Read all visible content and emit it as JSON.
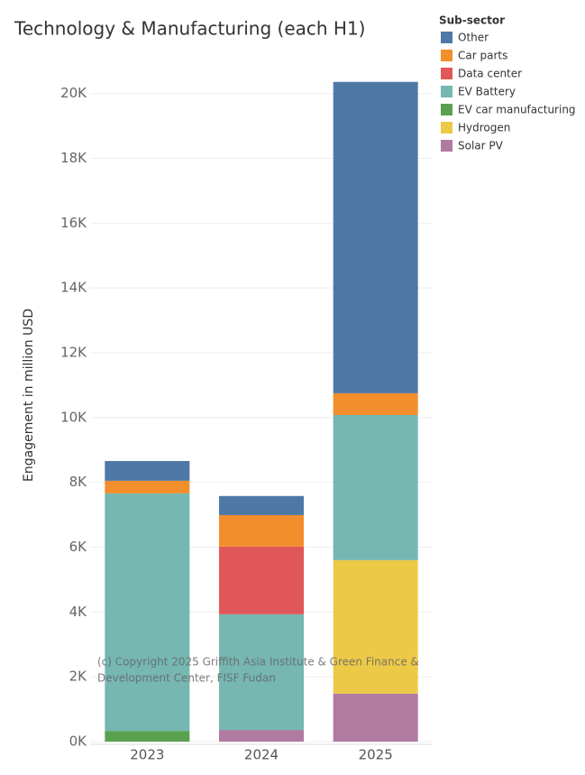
{
  "chart_data": {
    "type": "stacked_bar",
    "title": "Technology & Manufacturing (each H1)",
    "y_label": "Engagement in million USD",
    "legend_title": "Sub-sector",
    "categories": [
      "2023",
      "2024",
      "2025"
    ],
    "series": [
      {
        "name": "Other",
        "color": "#4e79a7",
        "values": [
          610,
          590,
          9610
        ]
      },
      {
        "name": "Car parts",
        "color": "#f28e2b",
        "values": [
          390,
          970,
          670
        ]
      },
      {
        "name": "Data center",
        "color": "#e15759",
        "values": [
          0,
          2090,
          0
        ]
      },
      {
        "name": "EV Battery",
        "color": "#76b7b2",
        "values": [
          7330,
          3570,
          4480
        ]
      },
      {
        "name": "EV car manufacturing",
        "color": "#59a14f",
        "values": [
          330,
          0,
          0
        ]
      },
      {
        "name": "Hydrogen",
        "color": "#edc948",
        "values": [
          0,
          0,
          4120
        ]
      },
      {
        "name": "Solar PV",
        "color": "#b07aa1",
        "values": [
          0,
          360,
          1480
        ]
      }
    ],
    "ylim": [
      0,
      21300
    ],
    "yticks": [
      {
        "value": 0,
        "label": "0K"
      },
      {
        "value": 2000,
        "label": "2K"
      },
      {
        "value": 4000,
        "label": "4K"
      },
      {
        "value": 6000,
        "label": "6K"
      },
      {
        "value": 8000,
        "label": "8K"
      },
      {
        "value": 10000,
        "label": "10K"
      },
      {
        "value": 12000,
        "label": "12K"
      },
      {
        "value": 14000,
        "label": "14K"
      },
      {
        "value": 16000,
        "label": "16K"
      },
      {
        "value": 18000,
        "label": "18K"
      },
      {
        "value": 20000,
        "label": "20K"
      }
    ],
    "grid": true,
    "copyright": [
      "(c) Copyright 2025 Griffith Asia Institute & Green Finance &",
      "Development Center, FISF Fudan"
    ]
  }
}
